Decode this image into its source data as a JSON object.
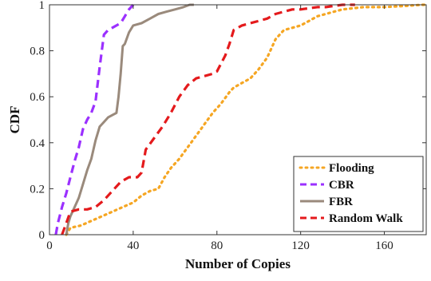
{
  "chart_data": {
    "type": "line",
    "xlabel": "Number of Copies",
    "ylabel": "CDF",
    "xlim": [
      0,
      180
    ],
    "ylim": [
      0,
      1
    ],
    "x_ticks": [
      0,
      40,
      80,
      120,
      160
    ],
    "x_tick_labels": [
      "0",
      "40",
      "80",
      "120",
      "160"
    ],
    "y_ticks": [
      0,
      0.2,
      0.4,
      0.6,
      0.8,
      1
    ],
    "y_tick_labels": [
      "0",
      "0.2",
      "0.4",
      "0.6",
      "0.8",
      "1"
    ],
    "grid": false,
    "legend_position": "bottom-right",
    "series": [
      {
        "name": "Flooding",
        "color": "#f5a623",
        "style": "dotted",
        "x": [
          8,
          10,
          15,
          20,
          25,
          30,
          35,
          40,
          44,
          48,
          52,
          55,
          58,
          62,
          66,
          70,
          74,
          78,
          82,
          86,
          88,
          92,
          96,
          100,
          104,
          106,
          108,
          110,
          112,
          116,
          120,
          124,
          128,
          132,
          136,
          140,
          150,
          160,
          170,
          178,
          180
        ],
        "y": [
          0,
          0.03,
          0.04,
          0.06,
          0.08,
          0.1,
          0.12,
          0.14,
          0.17,
          0.19,
          0.2,
          0.25,
          0.29,
          0.33,
          0.38,
          0.43,
          0.48,
          0.53,
          0.57,
          0.62,
          0.64,
          0.66,
          0.68,
          0.72,
          0.77,
          0.81,
          0.85,
          0.87,
          0.89,
          0.9,
          0.91,
          0.93,
          0.95,
          0.96,
          0.97,
          0.98,
          0.99,
          0.99,
          0.995,
          1.0,
          1.0
        ]
      },
      {
        "name": "CBR",
        "color": "#9b30ff",
        "style": "dashed",
        "x": [
          3,
          4,
          6,
          8,
          10,
          12,
          14,
          16,
          18,
          20,
          22,
          24,
          26,
          28,
          30,
          32,
          34,
          36,
          38,
          40
        ],
        "y": [
          0,
          0.05,
          0.12,
          0.18,
          0.25,
          0.32,
          0.38,
          0.46,
          0.5,
          0.53,
          0.58,
          0.73,
          0.87,
          0.89,
          0.9,
          0.91,
          0.92,
          0.95,
          0.98,
          1.0
        ]
      },
      {
        "name": "FBR",
        "color": "#9a8a7c",
        "style": "solid",
        "x": [
          8,
          9,
          10,
          12,
          14,
          16,
          18,
          20,
          22,
          24,
          26,
          28,
          30,
          32,
          33,
          34,
          35,
          36,
          38,
          40,
          44,
          48,
          52,
          56,
          60,
          64,
          67,
          69
        ],
        "y": [
          0,
          0.05,
          0.08,
          0.12,
          0.16,
          0.22,
          0.28,
          0.33,
          0.41,
          0.47,
          0.49,
          0.51,
          0.52,
          0.53,
          0.6,
          0.7,
          0.82,
          0.83,
          0.88,
          0.91,
          0.92,
          0.94,
          0.96,
          0.97,
          0.98,
          0.99,
          1.0,
          1.0
        ]
      },
      {
        "name": "Random Walk",
        "color": "#e41a1c",
        "style": "dashed",
        "x": [
          6,
          8,
          10,
          14,
          18,
          22,
          26,
          30,
          34,
          38,
          42,
          44,
          46,
          50,
          54,
          58,
          62,
          66,
          70,
          74,
          78,
          80,
          84,
          86,
          88,
          92,
          96,
          100,
          104,
          108,
          112,
          116,
          120,
          124,
          128,
          132,
          136,
          140,
          146
        ],
        "y": [
          0,
          0.05,
          0.1,
          0.11,
          0.11,
          0.12,
          0.15,
          0.19,
          0.23,
          0.25,
          0.25,
          0.27,
          0.37,
          0.42,
          0.47,
          0.53,
          0.6,
          0.65,
          0.68,
          0.69,
          0.7,
          0.71,
          0.78,
          0.83,
          0.89,
          0.91,
          0.92,
          0.93,
          0.94,
          0.96,
          0.97,
          0.98,
          0.98,
          0.985,
          0.99,
          0.99,
          0.995,
          1.0,
          1.0
        ]
      }
    ]
  }
}
